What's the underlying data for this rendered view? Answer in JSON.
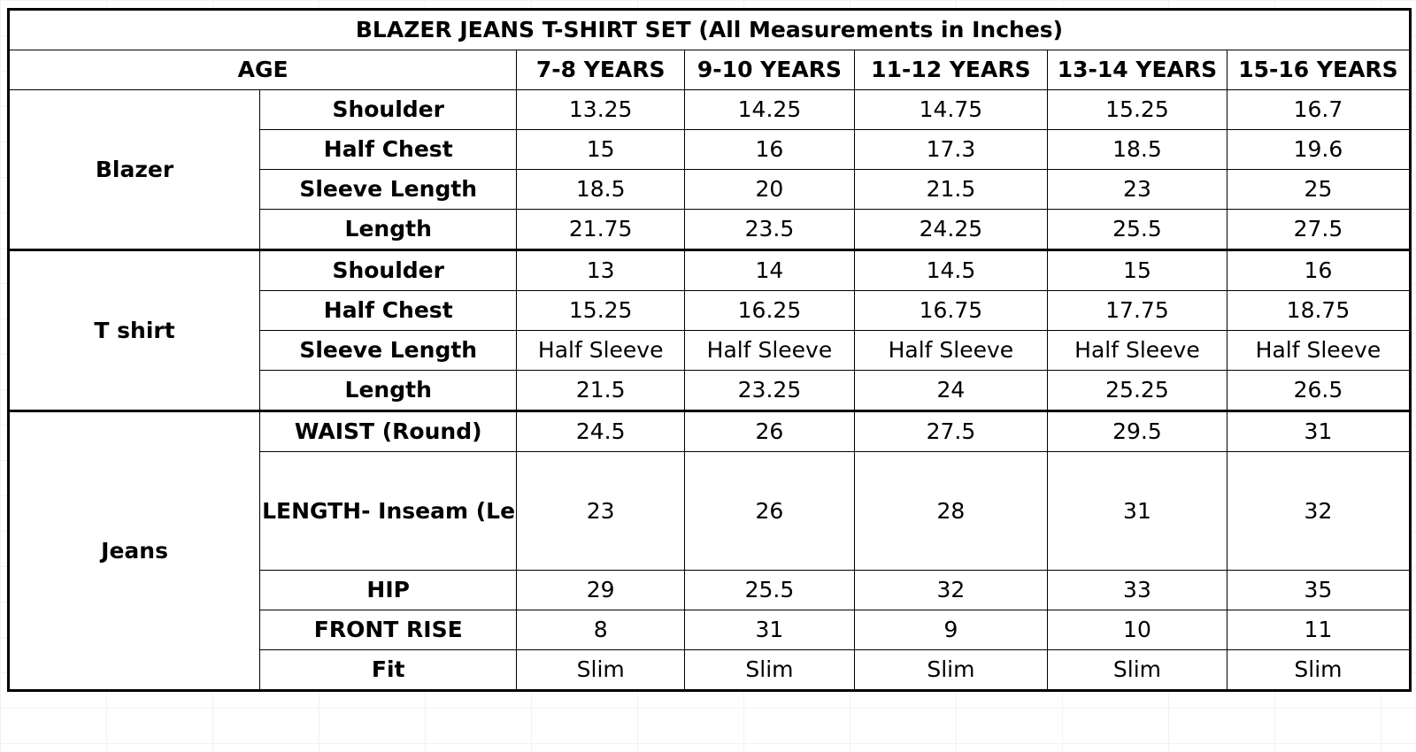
{
  "title": "BLAZER JEANS T-SHIRT SET (All Measurements in Inches)",
  "age_label": "AGE",
  "columns": [
    "7-8 YEARS",
    "9-10 YEARS",
    "11-12 YEARS",
    "13-14 YEARS",
    "15-16 YEARS"
  ],
  "groups": [
    {
      "name": "Blazer",
      "rows": [
        {
          "label": "Shoulder",
          "values": [
            "13.25",
            "14.25",
            "14.75",
            "15.25",
            "16.7"
          ]
        },
        {
          "label": "Half Chest",
          "values": [
            "15",
            "16",
            "17.3",
            "18.5",
            "19.6"
          ]
        },
        {
          "label": "Sleeve Length",
          "values": [
            "18.5",
            "20",
            "21.5",
            "23",
            "25"
          ]
        },
        {
          "label": "Length",
          "values": [
            "21.75",
            "23.5",
            "24.25",
            "25.5",
            "27.5"
          ]
        }
      ]
    },
    {
      "name": "T shirt",
      "rows": [
        {
          "label": "Shoulder",
          "values": [
            "13",
            "14",
            "14.5",
            "15",
            "16"
          ]
        },
        {
          "label": "Half Chest",
          "values": [
            "15.25",
            "16.25",
            "16.75",
            "17.75",
            "18.75"
          ]
        },
        {
          "label": "Sleeve Length",
          "values": [
            "Half Sleeve",
            "Half Sleeve",
            "Half Sleeve",
            "Half Sleeve",
            "Half Sleeve"
          ]
        },
        {
          "label": "Length",
          "values": [
            "21.5",
            "23.25",
            "24",
            "25.25",
            "26.5"
          ]
        }
      ]
    },
    {
      "name": "Jeans",
      "rows": [
        {
          "label": "WAIST (Round)",
          "values": [
            "24.5",
            "26",
            "27.5",
            "29.5",
            "31"
          ]
        },
        {
          "label": "LENGTH- Inseam (Length from the crotch)",
          "values": [
            "23",
            "26",
            "28",
            "31",
            "32"
          ]
        },
        {
          "label": "HIP",
          "values": [
            "29",
            "25.5",
            "32",
            "33",
            "35"
          ]
        },
        {
          "label": "FRONT RISE",
          "values": [
            "8",
            "31",
            "9",
            "10",
            "11"
          ]
        },
        {
          "label": "Fit",
          "values": [
            "Slim",
            "Slim",
            "Slim",
            "Slim",
            "Slim"
          ]
        }
      ]
    }
  ]
}
